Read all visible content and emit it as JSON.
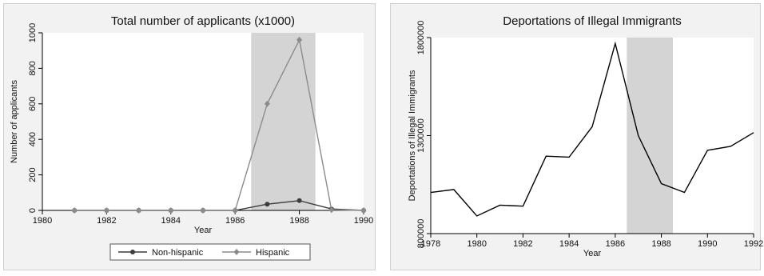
{
  "chart_data": [
    {
      "type": "line",
      "title": "Total number of applicants (x1000)",
      "xlabel": "Year",
      "ylabel": "Number of applicants",
      "xlim": [
        1980,
        1990
      ],
      "ylim": [
        0,
        1000
      ],
      "xticks": [
        1980,
        1982,
        1984,
        1986,
        1988,
        1990
      ],
      "yticks": [
        0,
        200,
        400,
        600,
        800,
        1000
      ],
      "shaded_region": [
        1986.5,
        1988.5
      ],
      "series": [
        {
          "name": "Non-hispanic",
          "color": "#3c3c3c",
          "marker": "circle",
          "x": [
            1981,
            1982,
            1983,
            1984,
            1985,
            1986,
            1987,
            1988,
            1989,
            1990
          ],
          "y": [
            0,
            0,
            0,
            0,
            0,
            0,
            35,
            55,
            8,
            0
          ]
        },
        {
          "name": "Hispanic",
          "color": "#8c8c8c",
          "marker": "diamond",
          "x": [
            1981,
            1982,
            1983,
            1984,
            1985,
            1986,
            1987,
            1988,
            1989,
            1990
          ],
          "y": [
            0,
            0,
            0,
            0,
            0,
            0,
            600,
            960,
            3,
            0
          ]
        }
      ],
      "legend": {
        "position": "bottom",
        "entries": [
          "Non-hispanic",
          "Hispanic"
        ]
      }
    },
    {
      "type": "line",
      "title": "Deportations of Illegal Immigrants",
      "xlabel": "Year",
      "ylabel": "Deportations of Illegal Immigrants",
      "xlim": [
        1978,
        1992
      ],
      "ylim": [
        800000,
        1800000
      ],
      "xticks": [
        1978,
        1980,
        1982,
        1984,
        1986,
        1988,
        1990,
        1992
      ],
      "yticks": [
        800000,
        1300000,
        1800000
      ],
      "shaded_region": [
        1986.5,
        1988.5
      ],
      "series": [
        {
          "color": "#000000",
          "x": [
            1978,
            1979,
            1980,
            1981,
            1982,
            1983,
            1984,
            1985,
            1986,
            1987,
            1988,
            1989,
            1990,
            1991,
            1992
          ],
          "y": [
            1010000,
            1025000,
            890000,
            945000,
            940000,
            1195000,
            1190000,
            1345000,
            1770000,
            1300000,
            1055000,
            1010000,
            1225000,
            1245000,
            1315000
          ]
        }
      ]
    }
  ]
}
